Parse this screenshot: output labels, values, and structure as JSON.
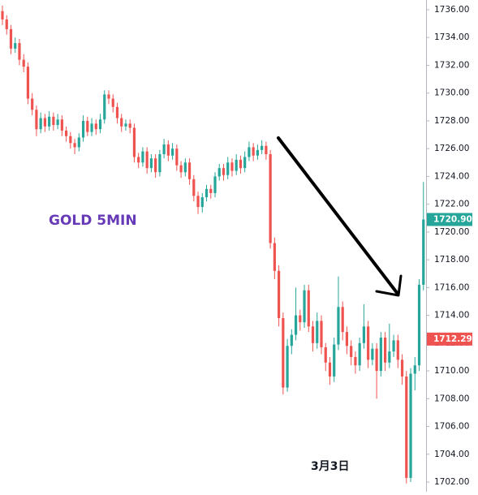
{
  "chart_data": {
    "type": "candlestick",
    "title": "GOLD 5MIN",
    "annotation": "3月3日",
    "up_color": "#26a69a",
    "down_color": "#ef5350",
    "ylim": [
      1701.3,
      1736.7
    ],
    "yticks": [
      {
        "value": 1702,
        "label": "1702.00"
      },
      {
        "value": 1704,
        "label": "1704.00"
      },
      {
        "value": 1706,
        "label": "1706.00"
      },
      {
        "value": 1708,
        "label": "1708.00"
      },
      {
        "value": 1710,
        "label": "1710.00"
      },
      {
        "value": 1712,
        "label": "1712.00"
      },
      {
        "value": 1714,
        "label": "1714.00"
      },
      {
        "value": 1716,
        "label": "1716.00"
      },
      {
        "value": 1718,
        "label": "1718.00"
      },
      {
        "value": 1720,
        "label": "1720.00"
      },
      {
        "value": 1722,
        "label": "1722.00"
      },
      {
        "value": 1724,
        "label": "1724.00"
      },
      {
        "value": 1726,
        "label": "1726.00"
      },
      {
        "value": 1728,
        "label": "1728.00"
      },
      {
        "value": 1730,
        "label": "1730.00"
      },
      {
        "value": 1732,
        "label": "1732.00"
      },
      {
        "value": 1734,
        "label": "1734.00"
      },
      {
        "value": 1736,
        "label": "1736.00"
      }
    ],
    "price_labels": [
      {
        "value": 1720.9,
        "label": "1720.90",
        "color": "#26a69a"
      },
      {
        "value": 1712.29,
        "label": "1712.29",
        "color": "#ef5350"
      }
    ],
    "open": [
      1735.9,
      1735.3,
      1734.6,
      1733.2,
      1733.6,
      1732.4,
      1731.9,
      1729.6,
      1728.8,
      1727.4,
      1728.2,
      1727.6,
      1728.3,
      1727.7,
      1728.1,
      1727.3,
      1726.9,
      1726.4,
      1726.1,
      1726.8,
      1728.0,
      1727.2,
      1727.8,
      1727.4,
      1728.1,
      1729.9,
      1729.6,
      1729.0,
      1728.2,
      1727.6,
      1727.8,
      1727.5,
      1725.4,
      1725.0,
      1725.8,
      1724.6,
      1725.3,
      1724.3,
      1725.6,
      1726.3,
      1725.5,
      1726.0,
      1724.8,
      1724.3,
      1725.0,
      1723.8,
      1722.6,
      1721.8,
      1722.5,
      1723.1,
      1722.8,
      1724.0,
      1724.6,
      1724.1,
      1725.0,
      1724.4,
      1725.2,
      1724.6,
      1725.4,
      1726.1,
      1725.5,
      1725.9,
      1726.2,
      1725.6,
      1719.2,
      1717.2,
      1713.8,
      1708.8,
      1711.8,
      1712.6,
      1714.0,
      1713.5,
      1715.8,
      1713.2,
      1712.0,
      1713.6,
      1711.7,
      1710.6,
      1709.6,
      1711.9,
      1714.6,
      1712.8,
      1711.8,
      1711.0,
      1710.4,
      1712.0,
      1713.2,
      1710.8,
      1711.6,
      1710.0,
      1712.4,
      1710.6,
      1711.4,
      1712.2,
      1710.8,
      1709.6,
      1702.3,
      1709.8,
      1710.4,
      1716.2
    ],
    "high": [
      1736.3,
      1735.6,
      1734.9,
      1734.0,
      1733.9,
      1732.8,
      1732.2,
      1730.0,
      1729.1,
      1728.6,
      1728.5,
      1728.7,
      1728.6,
      1728.5,
      1728.4,
      1727.6,
      1727.2,
      1726.7,
      1727.1,
      1728.4,
      1728.3,
      1728.2,
      1728.1,
      1728.5,
      1730.2,
      1730.2,
      1729.9,
      1729.3,
      1728.5,
      1728.1,
      1728.1,
      1727.8,
      1725.7,
      1726.1,
      1726.1,
      1725.6,
      1725.6,
      1725.9,
      1726.7,
      1726.6,
      1726.4,
      1726.3,
      1725.1,
      1725.3,
      1725.3,
      1724.1,
      1722.9,
      1722.8,
      1723.4,
      1723.4,
      1724.3,
      1724.9,
      1724.9,
      1725.4,
      1725.3,
      1725.6,
      1725.5,
      1725.8,
      1726.5,
      1726.4,
      1726.3,
      1726.6,
      1726.5,
      1725.9,
      1719.6,
      1717.6,
      1714.2,
      1712.3,
      1713.0,
      1716.0,
      1714.4,
      1716.2,
      1716.2,
      1713.6,
      1714.2,
      1714.0,
      1712.0,
      1711.0,
      1712.4,
      1716.8,
      1715.0,
      1713.2,
      1712.2,
      1711.4,
      1712.4,
      1714.8,
      1713.6,
      1712.0,
      1712.0,
      1712.8,
      1712.8,
      1713.4,
      1712.6,
      1712.6,
      1711.2,
      1710.0,
      1710.2,
      1711.0,
      1716.6,
      1723.6
    ],
    "low": [
      1734.9,
      1734.2,
      1732.8,
      1732.9,
      1732.0,
      1731.5,
      1729.2,
      1728.4,
      1726.9,
      1727.1,
      1727.2,
      1727.3,
      1727.3,
      1727.4,
      1726.9,
      1726.5,
      1726.0,
      1725.6,
      1725.8,
      1726.5,
      1726.9,
      1726.9,
      1727.0,
      1727.1,
      1727.8,
      1729.2,
      1728.6,
      1727.8,
      1727.2,
      1727.3,
      1727.1,
      1725.0,
      1724.6,
      1724.7,
      1724.2,
      1724.3,
      1723.9,
      1724.0,
      1725.3,
      1725.1,
      1725.2,
      1724.4,
      1723.9,
      1724.0,
      1723.4,
      1722.2,
      1721.3,
      1721.4,
      1722.2,
      1722.4,
      1722.5,
      1723.7,
      1723.7,
      1723.8,
      1724.0,
      1724.1,
      1724.2,
      1724.3,
      1725.1,
      1725.1,
      1725.2,
      1725.6,
      1725.2,
      1718.8,
      1716.6,
      1713.2,
      1708.3,
      1708.5,
      1711.2,
      1712.2,
      1712.9,
      1713.1,
      1712.8,
      1711.4,
      1711.6,
      1711.2,
      1710.0,
      1709.0,
      1709.2,
      1711.5,
      1712.2,
      1711.2,
      1710.4,
      1709.8,
      1710.0,
      1711.6,
      1710.2,
      1710.4,
      1708.0,
      1709.6,
      1710.0,
      1710.2,
      1711.0,
      1710.2,
      1709.0,
      1701.9,
      1702.0,
      1708.6,
      1710.0,
      1715.8
    ],
    "close": [
      1735.3,
      1734.6,
      1733.2,
      1733.6,
      1732.4,
      1731.9,
      1729.6,
      1728.8,
      1727.4,
      1728.2,
      1727.6,
      1728.3,
      1727.7,
      1728.1,
      1727.3,
      1726.9,
      1726.4,
      1726.1,
      1726.8,
      1728.0,
      1727.2,
      1727.8,
      1727.4,
      1728.1,
      1729.9,
      1729.6,
      1729.0,
      1728.2,
      1727.6,
      1727.8,
      1727.5,
      1725.4,
      1725.0,
      1725.8,
      1724.6,
      1725.3,
      1724.3,
      1725.6,
      1726.3,
      1725.5,
      1726.0,
      1724.8,
      1724.3,
      1725.0,
      1723.8,
      1722.6,
      1721.8,
      1722.5,
      1723.1,
      1722.8,
      1724.0,
      1724.6,
      1724.1,
      1725.0,
      1724.4,
      1725.2,
      1724.6,
      1725.4,
      1726.1,
      1725.5,
      1725.9,
      1726.2,
      1725.6,
      1719.2,
      1717.2,
      1713.8,
      1708.8,
      1711.8,
      1712.6,
      1714.0,
      1713.5,
      1715.8,
      1713.2,
      1712.0,
      1713.6,
      1711.7,
      1710.6,
      1709.6,
      1711.9,
      1714.6,
      1712.8,
      1711.8,
      1711.0,
      1710.4,
      1712.0,
      1713.2,
      1710.8,
      1711.6,
      1710.0,
      1712.4,
      1710.6,
      1711.4,
      1712.2,
      1710.8,
      1709.6,
      1702.3,
      1709.8,
      1710.4,
      1716.2,
      1720.9
    ]
  }
}
